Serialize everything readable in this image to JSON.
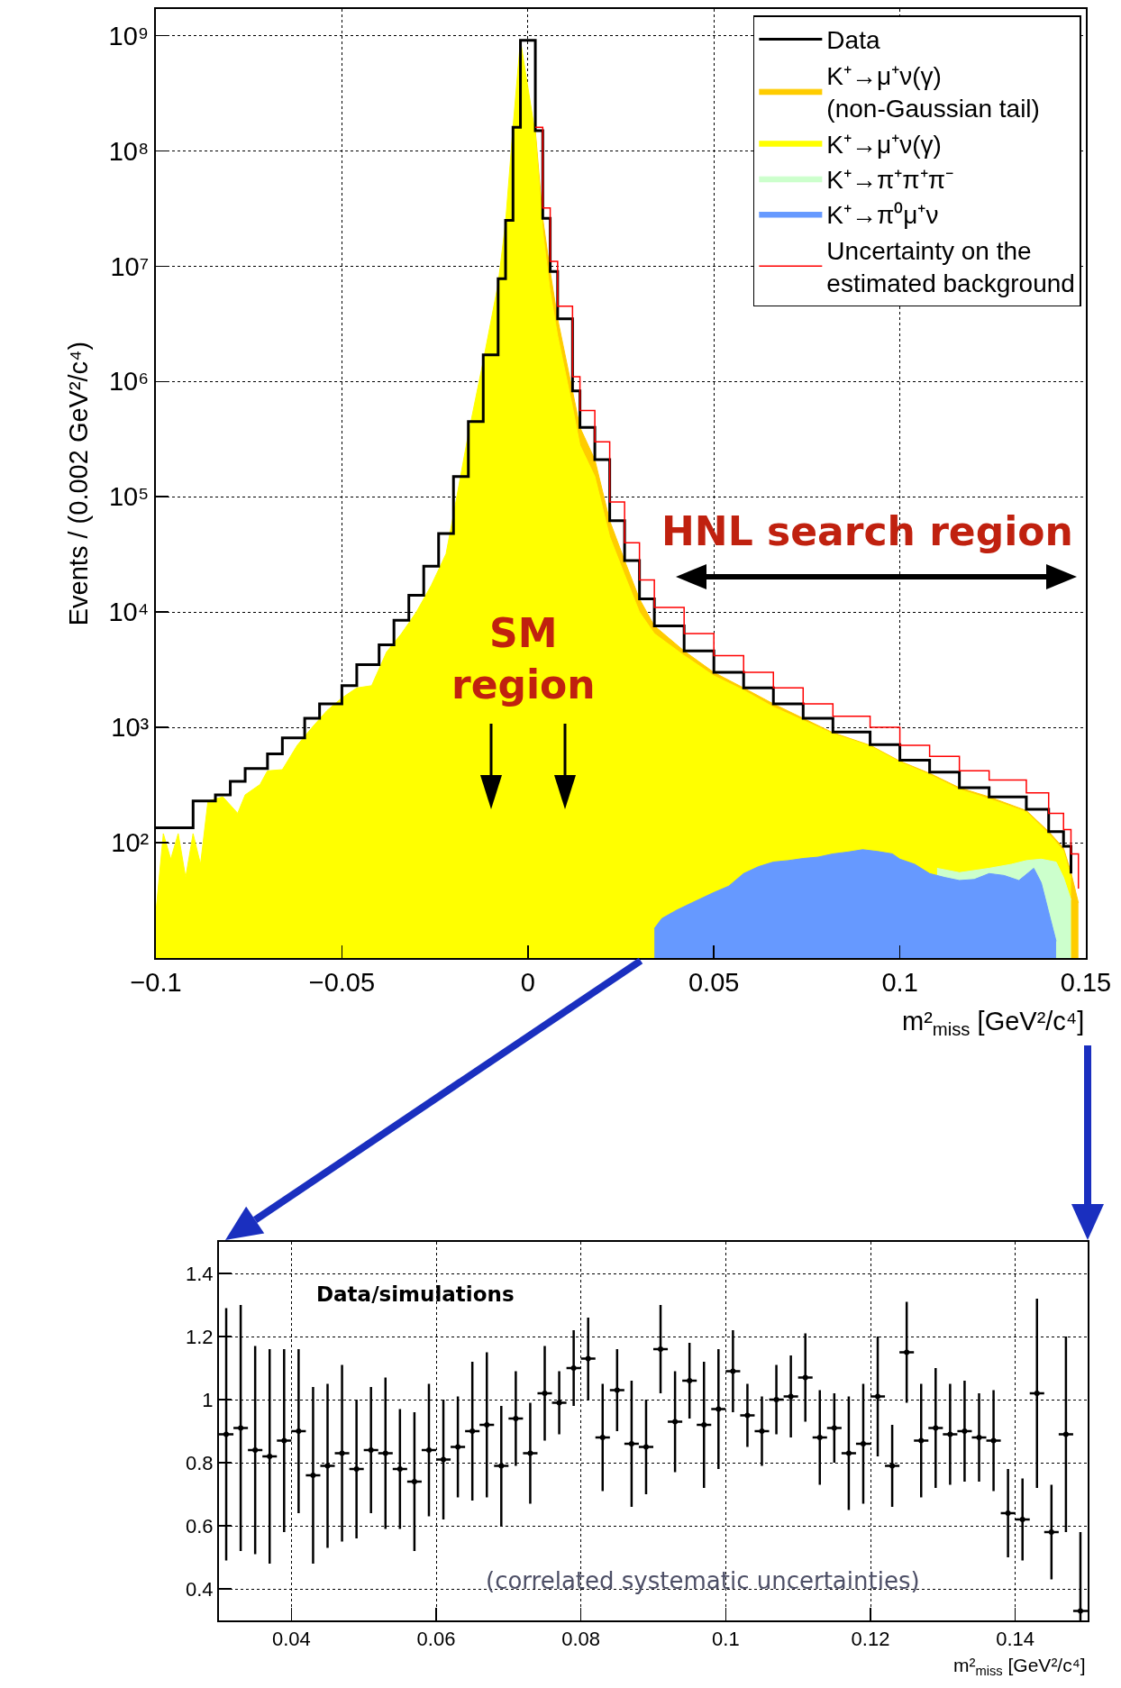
{
  "chart_data": [
    {
      "type": "step",
      "xlabel": "m²$_{miss}$ [GeV²/c⁴]",
      "ylabel": "Events / (0.002 GeV²/c⁴)",
      "log": "y",
      "grid": true,
      "legend": "top right",
      "xlim": [
        -0.1,
        0.15
      ],
      "xticks": [
        {
          "value": -0.1,
          "label": "−0.1"
        },
        {
          "value": -0.05,
          "label": "−0.05"
        },
        0,
        0.05,
        0.1,
        0.15
      ],
      "ylim": [
        10,
        1700000000
      ],
      "yticks": [
        {
          "value": 100,
          "label": "10²"
        },
        {
          "value": 1000,
          "label": "10³"
        },
        {
          "value": 10000,
          "label": "10⁴"
        },
        {
          "value": 100000,
          "label": "10⁵"
        },
        {
          "value": 1000000,
          "label": "10⁶"
        },
        {
          "value": 10000000,
          "label": "10⁷"
        },
        {
          "value": 100000000,
          "label": "10⁸"
        },
        {
          "value": 1000000000,
          "label": "10⁹"
        }
      ],
      "annotations": [
        "HNL search region",
        "SM\nregion"
      ],
      "series": [
        {
          "name": "Data",
          "type": "step",
          "color": "#000000",
          "x": [
            -0.1,
            -0.09,
            -0.084,
            -0.08,
            -0.076,
            -0.07,
            -0.066,
            -0.06,
            -0.056,
            -0.05,
            -0.046,
            -0.04,
            -0.036,
            -0.032,
            -0.028,
            -0.024,
            -0.02,
            -0.016,
            -0.012,
            -0.008,
            -0.006,
            -0.004,
            -0.002,
            0.002,
            0.004,
            0.006,
            0.008,
            0.012,
            0.014,
            0.018,
            0.022,
            0.026,
            0.03,
            0.034,
            0.042,
            0.05,
            0.058,
            0.066,
            0.074,
            0.082,
            0.092,
            0.1,
            0.108,
            0.116,
            0.124,
            0.134,
            0.14,
            0.144,
            0.146
          ],
          "values": [
            135,
            230,
            260,
            340,
            440,
            590,
            810,
            1200,
            1600,
            2300,
            3500,
            5200,
            8500,
            14000,
            25000,
            48000,
            150000,
            450000,
            1700000,
            7800000,
            25000000,
            160000000,
            910000000,
            150000000,
            26000000,
            9000000,
            3500000,
            830000,
            400000,
            210000,
            62000,
            28000,
            13000,
            7600,
            4600,
            3000,
            2200,
            1600,
            1200,
            910,
            710,
            520,
            410,
            300,
            250,
            195,
            125,
            93,
            54
          ]
        },
        {
          "name": "K⁺→μ⁺ν(γ)\n(non-Gaussian tail)",
          "type": "area",
          "color": "#ffcc00",
          "x": [
            0.002,
            0.004,
            0.006,
            0.008,
            0.012,
            0.014,
            0.018,
            0.022,
            0.026,
            0.03,
            0.034,
            0.042,
            0.05,
            0.058,
            0.066,
            0.074,
            0.082,
            0.092,
            0.1,
            0.108,
            0.116,
            0.124,
            0.134,
            0.14,
            0.144,
            0.146,
            0.148
          ],
          "values": [
            150000000,
            26000000,
            9000000,
            3500000,
            830000,
            400000,
            210000,
            62000,
            28000,
            13000,
            7600,
            4600,
            3000,
            2200,
            1600,
            1200,
            900,
            700,
            510,
            400,
            300,
            250,
            190,
            125,
            90,
            55,
            30
          ]
        },
        {
          "name": "K⁺→μ⁺ν(γ)",
          "type": "area",
          "color": "#ffff00",
          "x": [
            -0.1,
            -0.098,
            -0.096,
            -0.094,
            -0.092,
            -0.09,
            -0.088,
            -0.086,
            -0.082,
            -0.078,
            -0.076,
            -0.072,
            -0.07,
            -0.066,
            -0.062,
            -0.058,
            -0.054,
            -0.05,
            -0.046,
            -0.042,
            -0.038,
            -0.034,
            -0.03,
            -0.026,
            -0.022,
            -0.02,
            -0.016,
            -0.012,
            -0.008,
            -0.006,
            -0.004,
            -0.002,
            0.002,
            0.004,
            0.006,
            0.008,
            0.012,
            0.014,
            0.018,
            0.022,
            0.026,
            0.03,
            0.034,
            0.042,
            0.05,
            0.058,
            0.066,
            0.074,
            0.082,
            0.092,
            0.1,
            0.108,
            0.116,
            0.124,
            0.134,
            0.14,
            0.144,
            0.146
          ],
          "values": [
            25,
            120,
            72,
            120,
            50,
            120,
            65,
            230,
            250,
            180,
            260,
            320,
            420,
            430,
            700,
            1000,
            1400,
            1800,
            2200,
            2300,
            4500,
            6500,
            10000,
            17000,
            32000,
            70000,
            350000,
            1500000,
            7000000,
            24000000,
            160000000,
            910000000,
            140000000,
            20000000,
            6000000,
            2500000,
            600000,
            280000,
            150000,
            45000,
            21000,
            10000,
            6500,
            4200,
            2800,
            2100,
            1500,
            1150,
            880,
            690,
            500,
            390,
            290,
            240,
            185,
            120,
            85,
            50
          ]
        },
        {
          "name": "K⁺→π⁺π⁺π⁻",
          "type": "area",
          "color": "#ccffcc",
          "x": [
            0.11,
            0.116,
            0.124,
            0.13,
            0.134,
            0.138,
            0.142,
            0.144,
            0.146
          ],
          "values": [
            60,
            55,
            60,
            65,
            70,
            72,
            68,
            50,
            32
          ]
        },
        {
          "name": "K⁺→π⁰μ⁺ν",
          "type": "area",
          "color": "#6699ff",
          "x": [
            0.034,
            0.036,
            0.04,
            0.044,
            0.05,
            0.054,
            0.058,
            0.062,
            0.066,
            0.07,
            0.074,
            0.078,
            0.082,
            0.086,
            0.09,
            0.094,
            0.098,
            0.1,
            0.104,
            0.108,
            0.112,
            0.116,
            0.12,
            0.124,
            0.128,
            0.132,
            0.136,
            0.138,
            0.14,
            0.142
          ],
          "values": [
            18,
            22,
            26,
            30,
            37,
            42,
            54,
            62,
            68,
            70,
            73,
            75,
            80,
            83,
            87,
            84,
            80,
            72,
            65,
            54,
            50,
            47,
            48,
            54,
            52,
            47,
            60,
            45,
            25,
            14
          ]
        },
        {
          "name": "Uncertainty on the\nestimated background",
          "type": "step",
          "color": "#ff0000",
          "x": [
            0.002,
            0.004,
            0.006,
            0.008,
            0.012,
            0.014,
            0.018,
            0.022,
            0.026,
            0.03,
            0.034,
            0.042,
            0.05,
            0.058,
            0.066,
            0.074,
            0.082,
            0.092,
            0.1,
            0.108,
            0.116,
            0.124,
            0.134,
            0.14,
            0.144,
            0.146,
            0.148
          ],
          "values": [
            160000000,
            32000000,
            11000000,
            4500000,
            1100000,
            560000,
            300000,
            90000,
            40000,
            19000,
            11000,
            6500,
            4200,
            3000,
            2200,
            1600,
            1250,
            1000,
            700,
            560,
            420,
            350,
            270,
            180,
            130,
            80,
            40
          ]
        }
      ]
    },
    {
      "type": "scatter",
      "xlabel": "m²$_{miss}$ [GeV²/c⁴]",
      "grid": true,
      "marker": "circle",
      "xlim": [
        0.03,
        0.15
      ],
      "xticks": [
        0.04,
        0.06,
        0.08,
        0.1,
        0.12,
        0.14
      ],
      "ylim": [
        0.3,
        1.5
      ],
      "yticks": [
        0.4,
        0.6,
        0.8,
        1,
        1.2,
        1.4
      ],
      "annotations": [
        "Data/simulations",
        "(correlated systematic uncertainties)"
      ],
      "series": [
        {
          "color": "#000000",
          "x": [
            0.031,
            0.033,
            0.035,
            0.037,
            0.039,
            0.041,
            0.043,
            0.045,
            0.047,
            0.049,
            0.051,
            0.053,
            0.055,
            0.057,
            0.059,
            0.061,
            0.063,
            0.065,
            0.067,
            0.069,
            0.071,
            0.073,
            0.075,
            0.077,
            0.079,
            0.081,
            0.083,
            0.085,
            0.087,
            0.089,
            0.091,
            0.093,
            0.095,
            0.097,
            0.099,
            0.101,
            0.103,
            0.105,
            0.107,
            0.109,
            0.111,
            0.113,
            0.115,
            0.117,
            0.119,
            0.121,
            0.123,
            0.125,
            0.127,
            0.129,
            0.131,
            0.133,
            0.135,
            0.137,
            0.139,
            0.141,
            0.143,
            0.145,
            0.147,
            0.149
          ],
          "values": [
            0.89,
            0.91,
            0.84,
            0.82,
            0.87,
            0.9,
            0.76,
            0.79,
            0.83,
            0.78,
            0.84,
            0.83,
            0.78,
            0.74,
            0.84,
            0.81,
            0.85,
            0.9,
            0.92,
            0.79,
            0.94,
            0.83,
            1.02,
            0.99,
            1.1,
            1.13,
            0.88,
            1.03,
            0.86,
            0.85,
            1.16,
            0.93,
            1.06,
            0.92,
            0.97,
            1.09,
            0.95,
            0.9,
            1,
            1.01,
            1.07,
            0.88,
            0.91,
            0.83,
            0.86,
            1.01,
            0.79,
            1.15,
            0.87,
            0.91,
            0.89,
            0.9,
            0.88,
            0.87,
            0.64,
            0.62,
            1.02,
            0.58,
            0.89,
            0.33
          ],
          "errors": [
            0.4,
            0.39,
            0.33,
            0.34,
            0.29,
            0.26,
            0.28,
            0.26,
            0.28,
            0.22,
            0.2,
            0.24,
            0.19,
            0.22,
            0.21,
            0.19,
            0.16,
            0.22,
            0.23,
            0.19,
            0.15,
            0.16,
            0.15,
            0.1,
            0.12,
            0.13,
            0.17,
            0.13,
            0.2,
            0.15,
            0.14,
            0.16,
            0.12,
            0.2,
            0.19,
            0.13,
            0.1,
            0.11,
            0.11,
            0.13,
            0.14,
            0.15,
            0.11,
            0.18,
            0.19,
            0.19,
            0.13,
            0.16,
            0.18,
            0.19,
            0.16,
            0.16,
            0.14,
            0.16,
            0.14,
            0.13,
            0.3,
            0.15,
            0.31,
            [
              0.3,
              0.58
            ]
          ],
          "xerrors": [
            0.001,
            0.001,
            0.001,
            0.001,
            0.001,
            0.001,
            0.001,
            0.001,
            0.001,
            0.001,
            0.001,
            0.001,
            0.001,
            0.001,
            0.001,
            0.001,
            0.001,
            0.001,
            0.001,
            0.001,
            0.001,
            0.001,
            0.001,
            0.001,
            0.001,
            0.001,
            0.001,
            0.001,
            0.001,
            0.001,
            0.001,
            0.001,
            0.001,
            0.001,
            0.001,
            0.001,
            0.001,
            0.001,
            0.001,
            0.001,
            0.001,
            0.001,
            0.001,
            0.001,
            0.001,
            0.001,
            0.001,
            0.001,
            0.001,
            0.001,
            0.001,
            0.001,
            0.001,
            0.001,
            0.001,
            0.001,
            0.001,
            0.001,
            0.001,
            0.001
          ]
        }
      ]
    }
  ]
}
